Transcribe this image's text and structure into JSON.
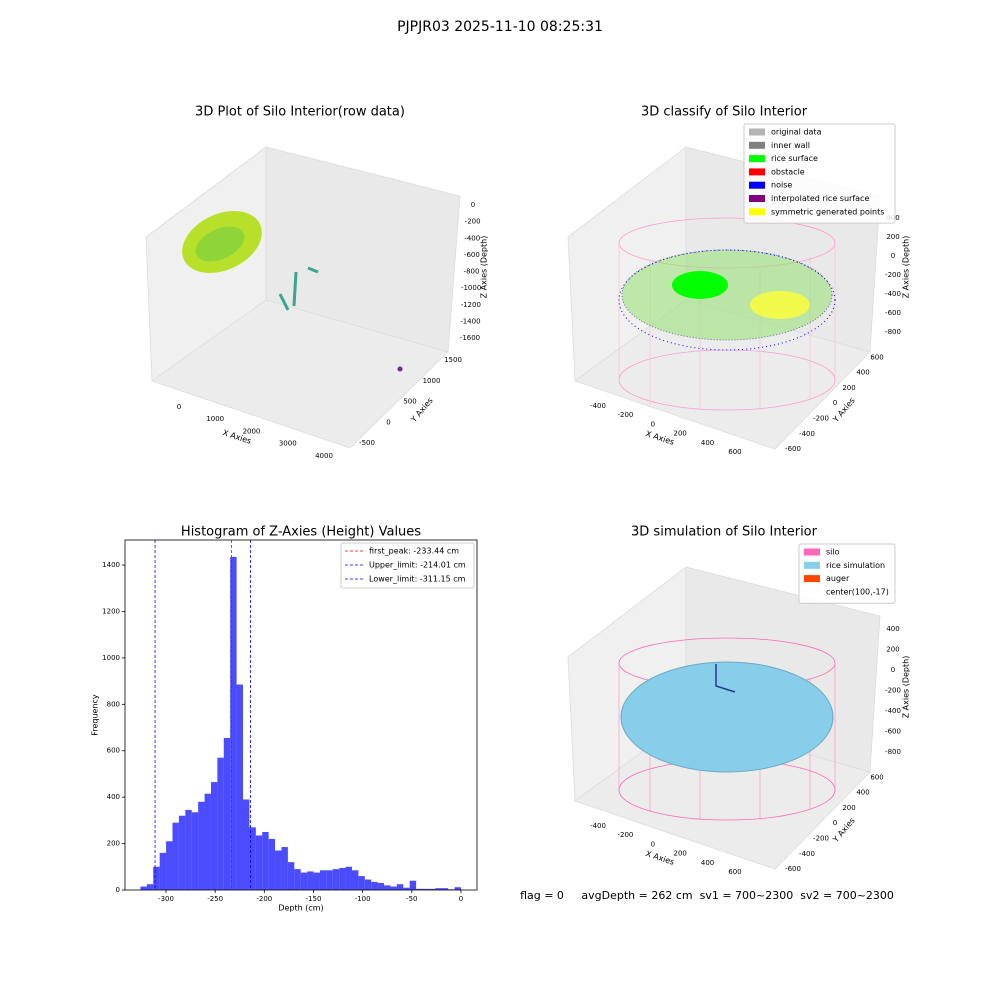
{
  "title": "PJPJR03 2025-11-10 08:25:31",
  "footer": "flag = 0     avgDepth = 262 cm  sv1 = 700~2300  sv2 = 700~2300",
  "chart_data": [
    {
      "type": "scatter3d",
      "title": "3D Plot of Silo Interior(row data)",
      "xlabel": "X Axies",
      "ylabel": "Y Axies",
      "zlabel": "Z Axies (Depth)",
      "xlim": [
        -700,
        4400
      ],
      "ylim": [
        -700,
        1700
      ],
      "zlim": [
        -1750,
        100
      ],
      "xticks": [
        0,
        1000,
        2000,
        3000,
        4000
      ],
      "yticks": [
        -500,
        0,
        500,
        1000,
        1500
      ],
      "zticks": [
        0,
        -200,
        -400,
        -600,
        -800,
        -1000,
        -1200,
        -1400,
        -1600
      ]
    },
    {
      "type": "scatter3d",
      "title": "3D classify of Silo Interior",
      "xlabel": "X Axies",
      "ylabel": "Y Axies",
      "zlabel": "Z Axies (Depth)",
      "xlim": [
        -520,
        720
      ],
      "ylim": [
        -700,
        700
      ],
      "zlim": [
        -900,
        450
      ],
      "xticks": [
        -400,
        -200,
        0,
        200,
        400,
        600
      ],
      "yticks": [
        -600,
        -400,
        -200,
        0,
        200,
        400,
        600
      ],
      "zticks": [
        -800,
        -600,
        -400,
        -200,
        0,
        200,
        400
      ],
      "series": [
        {
          "name": "original data",
          "color": "#b3b3b3"
        },
        {
          "name": "inner wall",
          "color": "#808080"
        },
        {
          "name": "rice surface",
          "color": "#00ff00"
        },
        {
          "name": "obstacle",
          "color": "#ff0000"
        },
        {
          "name": "noise",
          "color": "#0000ff"
        },
        {
          "name": "interpolated rice surface",
          "color": "#800080"
        },
        {
          "name": "symmetric generated points",
          "color": "#ffff00"
        }
      ]
    },
    {
      "type": "histogram",
      "title": "Histogram of Z-Axies (Height) Values",
      "xlabel": "Depth (cm)",
      "ylabel": "Frequency",
      "color": "#0000ff",
      "alpha": 0.7,
      "xlim": [
        -341.7,
        16.3
      ],
      "ylim": [
        0,
        1508
      ],
      "xticks": [
        -300,
        -250,
        -200,
        -150,
        -100,
        -50,
        0
      ],
      "yticks": [
        0,
        200,
        400,
        600,
        800,
        1000,
        1200,
        1400
      ],
      "bins": [
        -326,
        -319.48,
        -312.96,
        -306.44,
        -299.92,
        -293.4,
        -286.88,
        -280.36,
        -273.84,
        -267.32,
        -260.8,
        -254.28,
        -247.76,
        -241.24,
        -234.72,
        -228.2,
        -221.68,
        -215.16,
        -208.64,
        -202.12,
        -195.6,
        -189.08,
        -182.56,
        -176.04,
        -169.52,
        -163,
        -156.48,
        -149.96,
        -143.44,
        -136.92,
        -130.4,
        -123.88,
        -117.36,
        -110.84,
        -104.32,
        -97.8,
        -91.28,
        -84.76,
        -78.24,
        -71.72,
        -65.2,
        -58.68,
        -52.16,
        -45.64,
        -39.12,
        -32.6,
        -26.08,
        -19.56,
        -13.04,
        -6.52,
        0
      ],
      "counts": [
        15,
        25,
        100,
        160,
        210,
        290,
        320,
        345,
        335,
        380,
        415,
        465,
        570,
        655,
        1435,
        885,
        390,
        270,
        235,
        250,
        220,
        170,
        185,
        120,
        90,
        75,
        80,
        75,
        85,
        85,
        90,
        95,
        100,
        85,
        60,
        45,
        35,
        30,
        20,
        15,
        25,
        10,
        40,
        5,
        5,
        5,
        8,
        8,
        3,
        12
      ],
      "lines": [
        {
          "name": "first_peak: -233.44 cm",
          "value": -233.44,
          "color": "#ff0000"
        },
        {
          "name": "Upper_limit: -214.01 cm",
          "value": -214.01,
          "color": "#0000ff"
        },
        {
          "name": "Lower_limit: -311.15 cm",
          "value": -311.15,
          "color": "#0000ff"
        }
      ]
    },
    {
      "type": "scatter3d",
      "title": "3D simulation of Silo Interior",
      "xlabel": "X Axies",
      "ylabel": "Y Axies",
      "zlabel": "Z Axies (Depth)",
      "xlim": [
        -520,
        720
      ],
      "ylim": [
        -700,
        700
      ],
      "zlim": [
        -900,
        470
      ],
      "xticks": [
        -400,
        -200,
        0,
        200,
        400,
        600
      ],
      "yticks": [
        -600,
        -400,
        -200,
        0,
        200,
        400,
        600
      ],
      "zticks": [
        -800,
        -600,
        -400,
        -200,
        0,
        200,
        400
      ],
      "series": [
        {
          "name": "silo",
          "color": "#ff69b4"
        },
        {
          "name": "rice simulation",
          "color": "#87ceeb"
        },
        {
          "name": "auger",
          "color": "#ff4500"
        },
        {
          "name": "center(100,-17)"
        }
      ]
    }
  ]
}
